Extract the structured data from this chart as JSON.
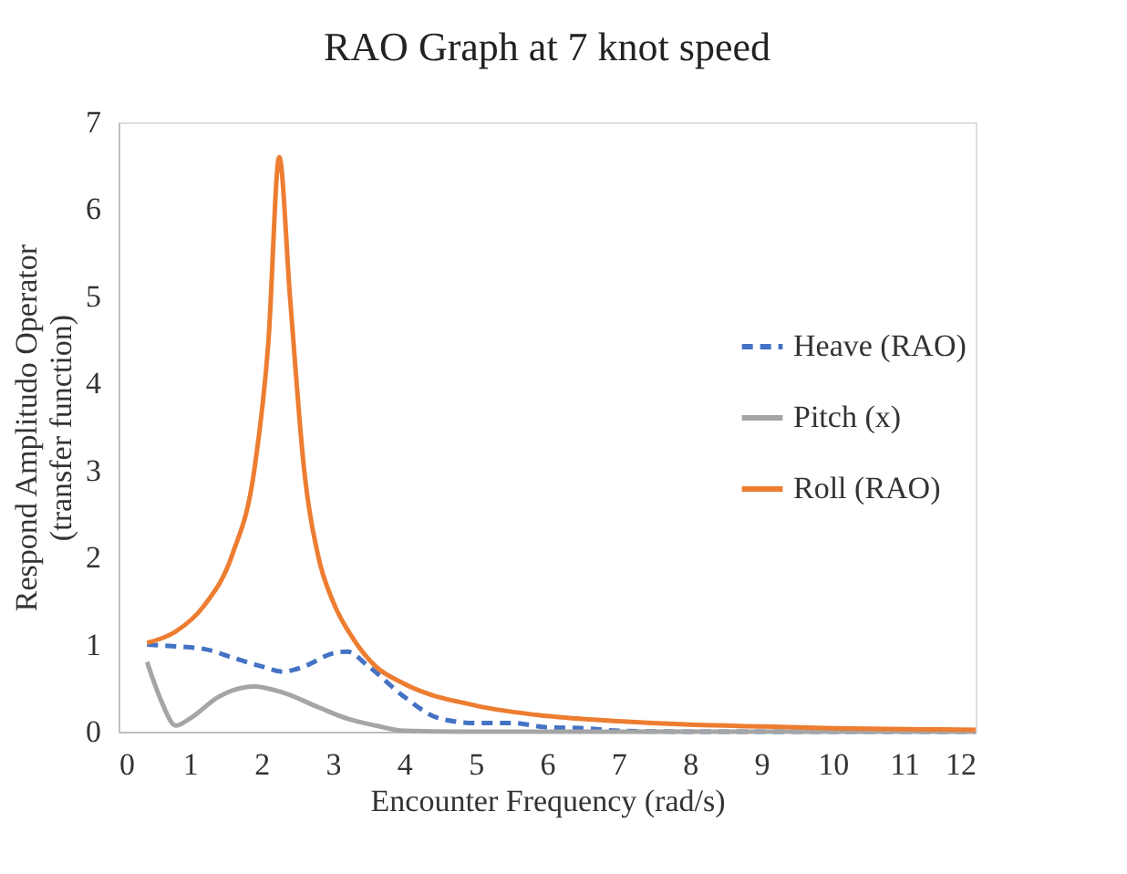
{
  "chart_data": {
    "type": "line",
    "title": "RAO Graph at 7 knot speed",
    "xlabel": "Encounter Frequency (rad/s)",
    "ylabel": "Respond Amplitudo Operator (transfer function)",
    "xlim": [
      0,
      12
    ],
    "xticks": [
      0,
      1,
      2,
      3,
      4,
      5,
      6,
      7,
      8,
      9,
      10,
      11,
      12
    ],
    "ylim": [
      0,
      7
    ],
    "yticks": [
      0,
      1,
      2,
      3,
      4,
      5,
      6,
      7
    ],
    "grid": false,
    "legend": "right",
    "marker": "none",
    "series": [
      {
        "name": "Heave (RAO)",
        "color": "#4472c4",
        "line_style": "dashed",
        "x": [
          0.4,
          0.8,
          1.2,
          1.6,
          2.0,
          2.3,
          2.6,
          3.0,
          3.2,
          3.5,
          4.0,
          4.5,
          5.0,
          5.5,
          6.0,
          6.5,
          7,
          8,
          12
        ],
        "values": [
          1.0,
          0.98,
          0.95,
          0.85,
          0.75,
          0.69,
          0.75,
          0.9,
          0.92,
          0.75,
          0.4,
          0.15,
          0.1,
          0.1,
          0.05,
          0.04,
          0.01,
          0,
          0
        ]
      },
      {
        "name": "Pitch (x)",
        "color": "#a5a5a5",
        "line_style": "solid",
        "x": [
          0.4,
          0.6,
          0.8,
          1.0,
          1.4,
          1.9,
          2.3,
          2.8,
          3.2,
          3.6,
          4.0,
          5,
          12
        ],
        "values": [
          0.8,
          0.35,
          0.07,
          0.15,
          0.4,
          0.52,
          0.45,
          0.28,
          0.15,
          0.07,
          0.01,
          0,
          0
        ]
      },
      {
        "name": "Roll (RAO)",
        "color": "#ed7d31",
        "line_style": "solid",
        "x": [
          0.4,
          0.8,
          1.2,
          1.6,
          1.9,
          2.1,
          2.25,
          2.4,
          2.6,
          2.8,
          3.0,
          3.3,
          3.6,
          4.0,
          5,
          6,
          7,
          8,
          9,
          10,
          11,
          12
        ],
        "values": [
          1.02,
          1.15,
          1.45,
          2.05,
          3.0,
          4.5,
          6.6,
          5.0,
          3.0,
          2.0,
          1.5,
          1.05,
          0.75,
          0.55,
          0.3,
          0.18,
          0.12,
          0.08,
          0.06,
          0.04,
          0.03,
          0.02
        ]
      }
    ]
  }
}
